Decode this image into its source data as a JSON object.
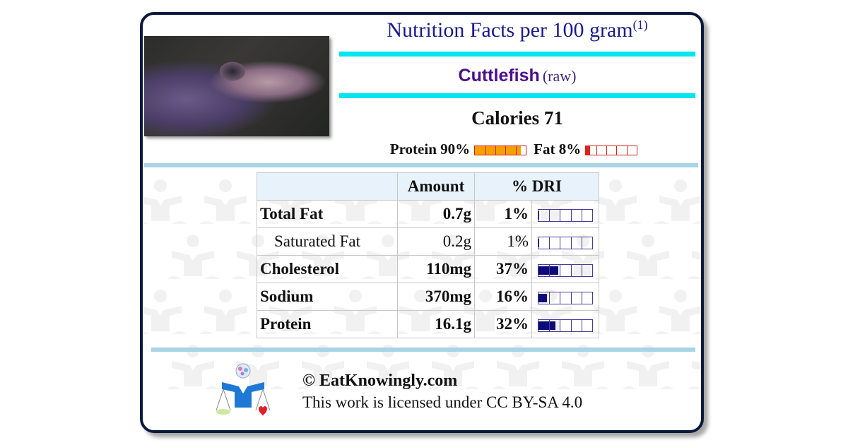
{
  "header": {
    "title": "Nutrition Facts per 100 gram",
    "title_note": "(1)"
  },
  "food": {
    "name": "Cuttlefish",
    "preparation": "(raw)"
  },
  "calories": {
    "label": "Calories 71",
    "value": 71
  },
  "macros": [
    {
      "label": "Protein 90%",
      "percent": 90,
      "fill_color": "#f5a000"
    },
    {
      "label": "Fat 8%",
      "percent": 8,
      "fill_color": "#e02020"
    }
  ],
  "table": {
    "headers": {
      "name": "",
      "amount": "Amount",
      "dri": "% DRI"
    },
    "rows": [
      {
        "name": "Total Fat",
        "amount": "0.7g",
        "dri": "1%",
        "dri_value": 1,
        "bold": true,
        "indent": false
      },
      {
        "name": "Saturated Fat",
        "amount": "0.2g",
        "dri": "1%",
        "dri_value": 1,
        "bold": false,
        "indent": true
      },
      {
        "name": "Cholesterol",
        "amount": "110mg",
        "dri": "37%",
        "dri_value": 37,
        "bold": true,
        "indent": false
      },
      {
        "name": "Sodium",
        "amount": "370mg",
        "dri": "16%",
        "dri_value": 16,
        "bold": true,
        "indent": false
      },
      {
        "name": "Protein",
        "amount": "16.1g",
        "dri": "32%",
        "dri_value": 32,
        "bold": true,
        "indent": false
      }
    ]
  },
  "footer": {
    "copyright": "© EatKnowingly.com",
    "license": "This work is licensed under CC BY-SA 4.0"
  },
  "colors": {
    "title_blue": "#1a1a8c",
    "food_purple": "#4b0f8c",
    "divider_cyan": "#00e5f0",
    "divider_light_blue": "#a9d3e6",
    "dri_bar_fill": "#0b0b7a",
    "logo_blue": "#1e78d6"
  },
  "icons": {
    "photo": "cuttlefish-photo",
    "logo": "scale-person-logo"
  }
}
